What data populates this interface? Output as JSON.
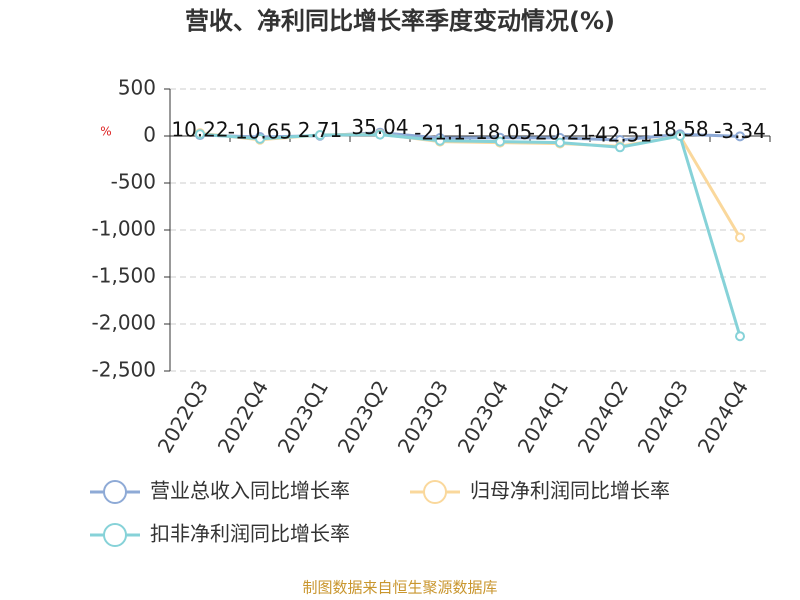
{
  "chart_data": {
    "type": "line",
    "title": "营收、净利同比增长率季度变动情况(%)",
    "y_label": "%",
    "categories": [
      "2022Q3",
      "2022Q4",
      "2023Q1",
      "2023Q2",
      "2023Q3",
      "2023Q4",
      "2024Q1",
      "2024Q2",
      "2024Q3",
      "2024Q4"
    ],
    "series": [
      {
        "name": "营业总收入同比增长率",
        "color": "#8eaad6",
        "values": [
          10.22,
          -10.65,
          2.71,
          35.04,
          -21.1,
          -18.05,
          -20.21,
          -42.51,
          18.58,
          -3.34
        ],
        "show_labels": true
      },
      {
        "name": "归母净利润同比增长率",
        "color": "#fad89c",
        "values": [
          30,
          -40,
          10,
          20,
          -60,
          -70,
          -80,
          -110,
          0,
          -1080
        ]
      },
      {
        "name": "扣非净利润同比增长率",
        "color": "#86d2d8",
        "values": [
          20,
          -30,
          10,
          15,
          -50,
          -60,
          -70,
          -120,
          0,
          -2130
        ]
      }
    ],
    "ylim": [
      -2500,
      500
    ],
    "yticks": [
      500,
      0,
      -500,
      {
        "value": -1000,
        "label": "-1,000"
      },
      {
        "value": -1500,
        "label": "-1,500"
      },
      {
        "value": -2000,
        "label": "-2,000"
      },
      {
        "value": -2500,
        "label": "-2,500"
      }
    ],
    "grid": true,
    "source": "制图数据来自恒生聚源数据库"
  }
}
